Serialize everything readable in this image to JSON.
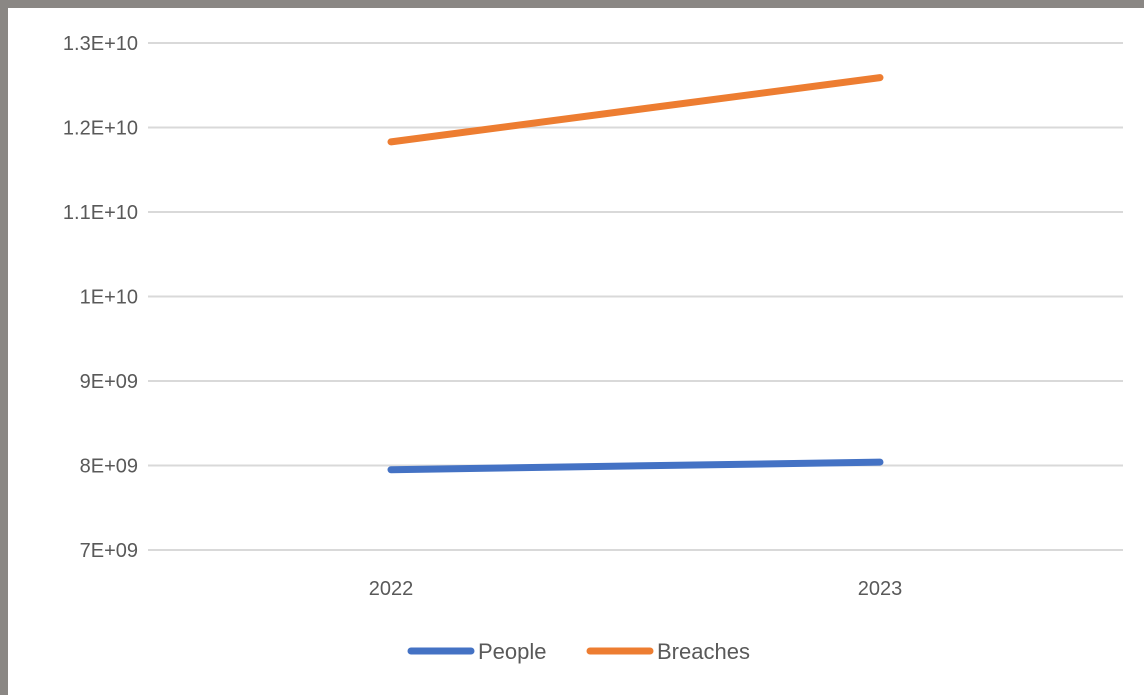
{
  "chart_data": {
    "type": "line",
    "title": "",
    "xlabel": "",
    "ylabel": "",
    "categories": [
      "2022",
      "2023"
    ],
    "series": [
      {
        "name": "People",
        "values": [
          7950000000,
          8040000000
        ],
        "color": "#4472c4"
      },
      {
        "name": "Breaches",
        "values": [
          11830000000,
          12590000000
        ],
        "color": "#ed7d31"
      }
    ],
    "ylim": [
      7000000000,
      13000000000
    ],
    "yticks": [
      {
        "value": 13000000000,
        "label": "1.3E+10"
      },
      {
        "value": 12000000000,
        "label": "1.2E+10"
      },
      {
        "value": 11000000000,
        "label": "1.1E+10"
      },
      {
        "value": 10000000000,
        "label": "1E+10"
      },
      {
        "value": 9000000000,
        "label": "9E+09"
      },
      {
        "value": 8000000000,
        "label": "8E+09"
      },
      {
        "value": 7000000000,
        "label": "7E+09"
      }
    ],
    "grid": true,
    "legend_position": "bottom",
    "gridline_color": "#d9d9d9",
    "text_color": "#595959"
  }
}
